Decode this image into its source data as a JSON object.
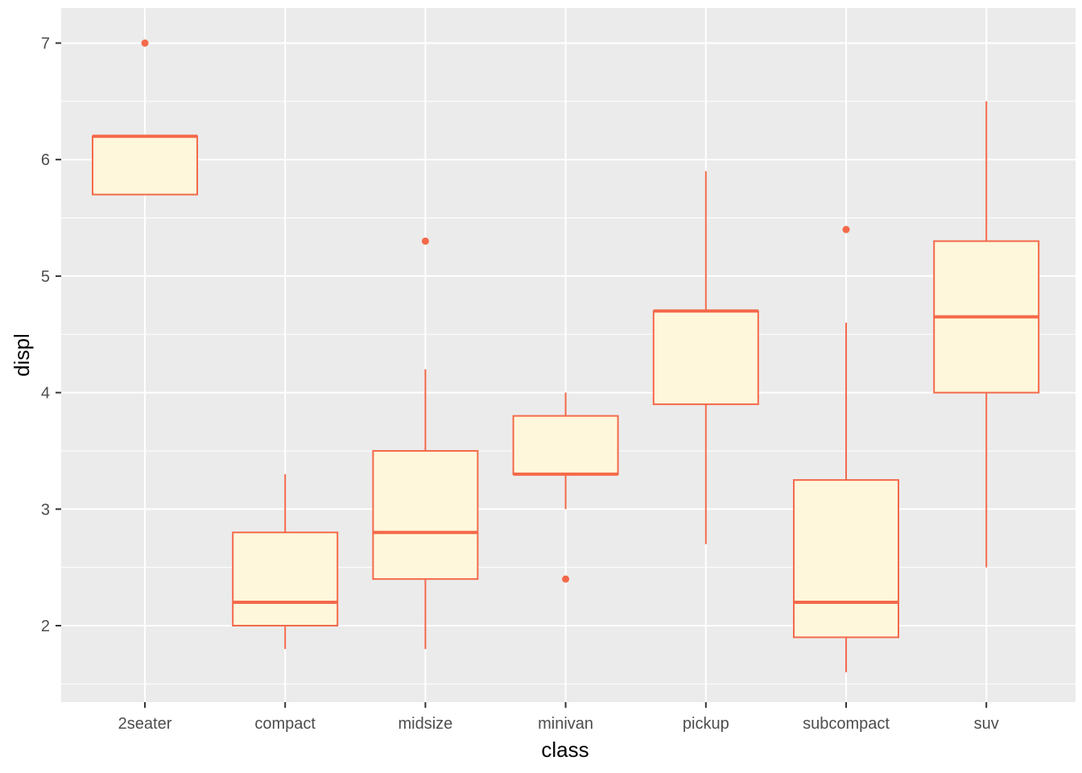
{
  "chart_data": {
    "type": "boxplot",
    "title": "",
    "xlabel": "class",
    "ylabel": "displ",
    "ylim": [
      1.35,
      7.25
    ],
    "y_ticks": [
      2,
      3,
      4,
      5,
      6,
      7
    ],
    "grid": true,
    "colors": {
      "panel": "#EBEBEB",
      "grid": "#FFFFFF",
      "box_outline": "#F4694A",
      "box_fill": "#FFF7DC",
      "tick_label": "#4D4D4D",
      "axis_title": "#000000"
    },
    "categories": [
      "2seater",
      "compact",
      "midsize",
      "minivan",
      "pickup",
      "subcompact",
      "suv"
    ],
    "boxes": [
      {
        "category": "2seater",
        "whisker_low": 5.7,
        "q1": 5.7,
        "median": 6.2,
        "q3": 6.2,
        "whisker_high": 6.2,
        "outliers": [
          7.0
        ]
      },
      {
        "category": "compact",
        "whisker_low": 1.8,
        "q1": 2.0,
        "median": 2.2,
        "q3": 2.8,
        "whisker_high": 3.3,
        "outliers": []
      },
      {
        "category": "midsize",
        "whisker_low": 1.8,
        "q1": 2.4,
        "median": 2.8,
        "q3": 3.5,
        "whisker_high": 4.2,
        "outliers": [
          5.3
        ]
      },
      {
        "category": "minivan",
        "whisker_low": 3.0,
        "q1": 3.3,
        "median": 3.3,
        "q3": 3.8,
        "whisker_high": 4.0,
        "outliers": [
          2.4
        ]
      },
      {
        "category": "pickup",
        "whisker_low": 2.7,
        "q1": 3.9,
        "median": 4.7,
        "q3": 4.7,
        "whisker_high": 5.9,
        "outliers": []
      },
      {
        "category": "subcompact",
        "whisker_low": 1.6,
        "q1": 1.9,
        "median": 2.2,
        "q3": 3.25,
        "whisker_high": 4.6,
        "outliers": [
          5.4
        ]
      },
      {
        "category": "suv",
        "whisker_low": 2.5,
        "q1": 4.0,
        "median": 4.65,
        "q3": 5.3,
        "whisker_high": 6.5,
        "outliers": []
      }
    ]
  }
}
